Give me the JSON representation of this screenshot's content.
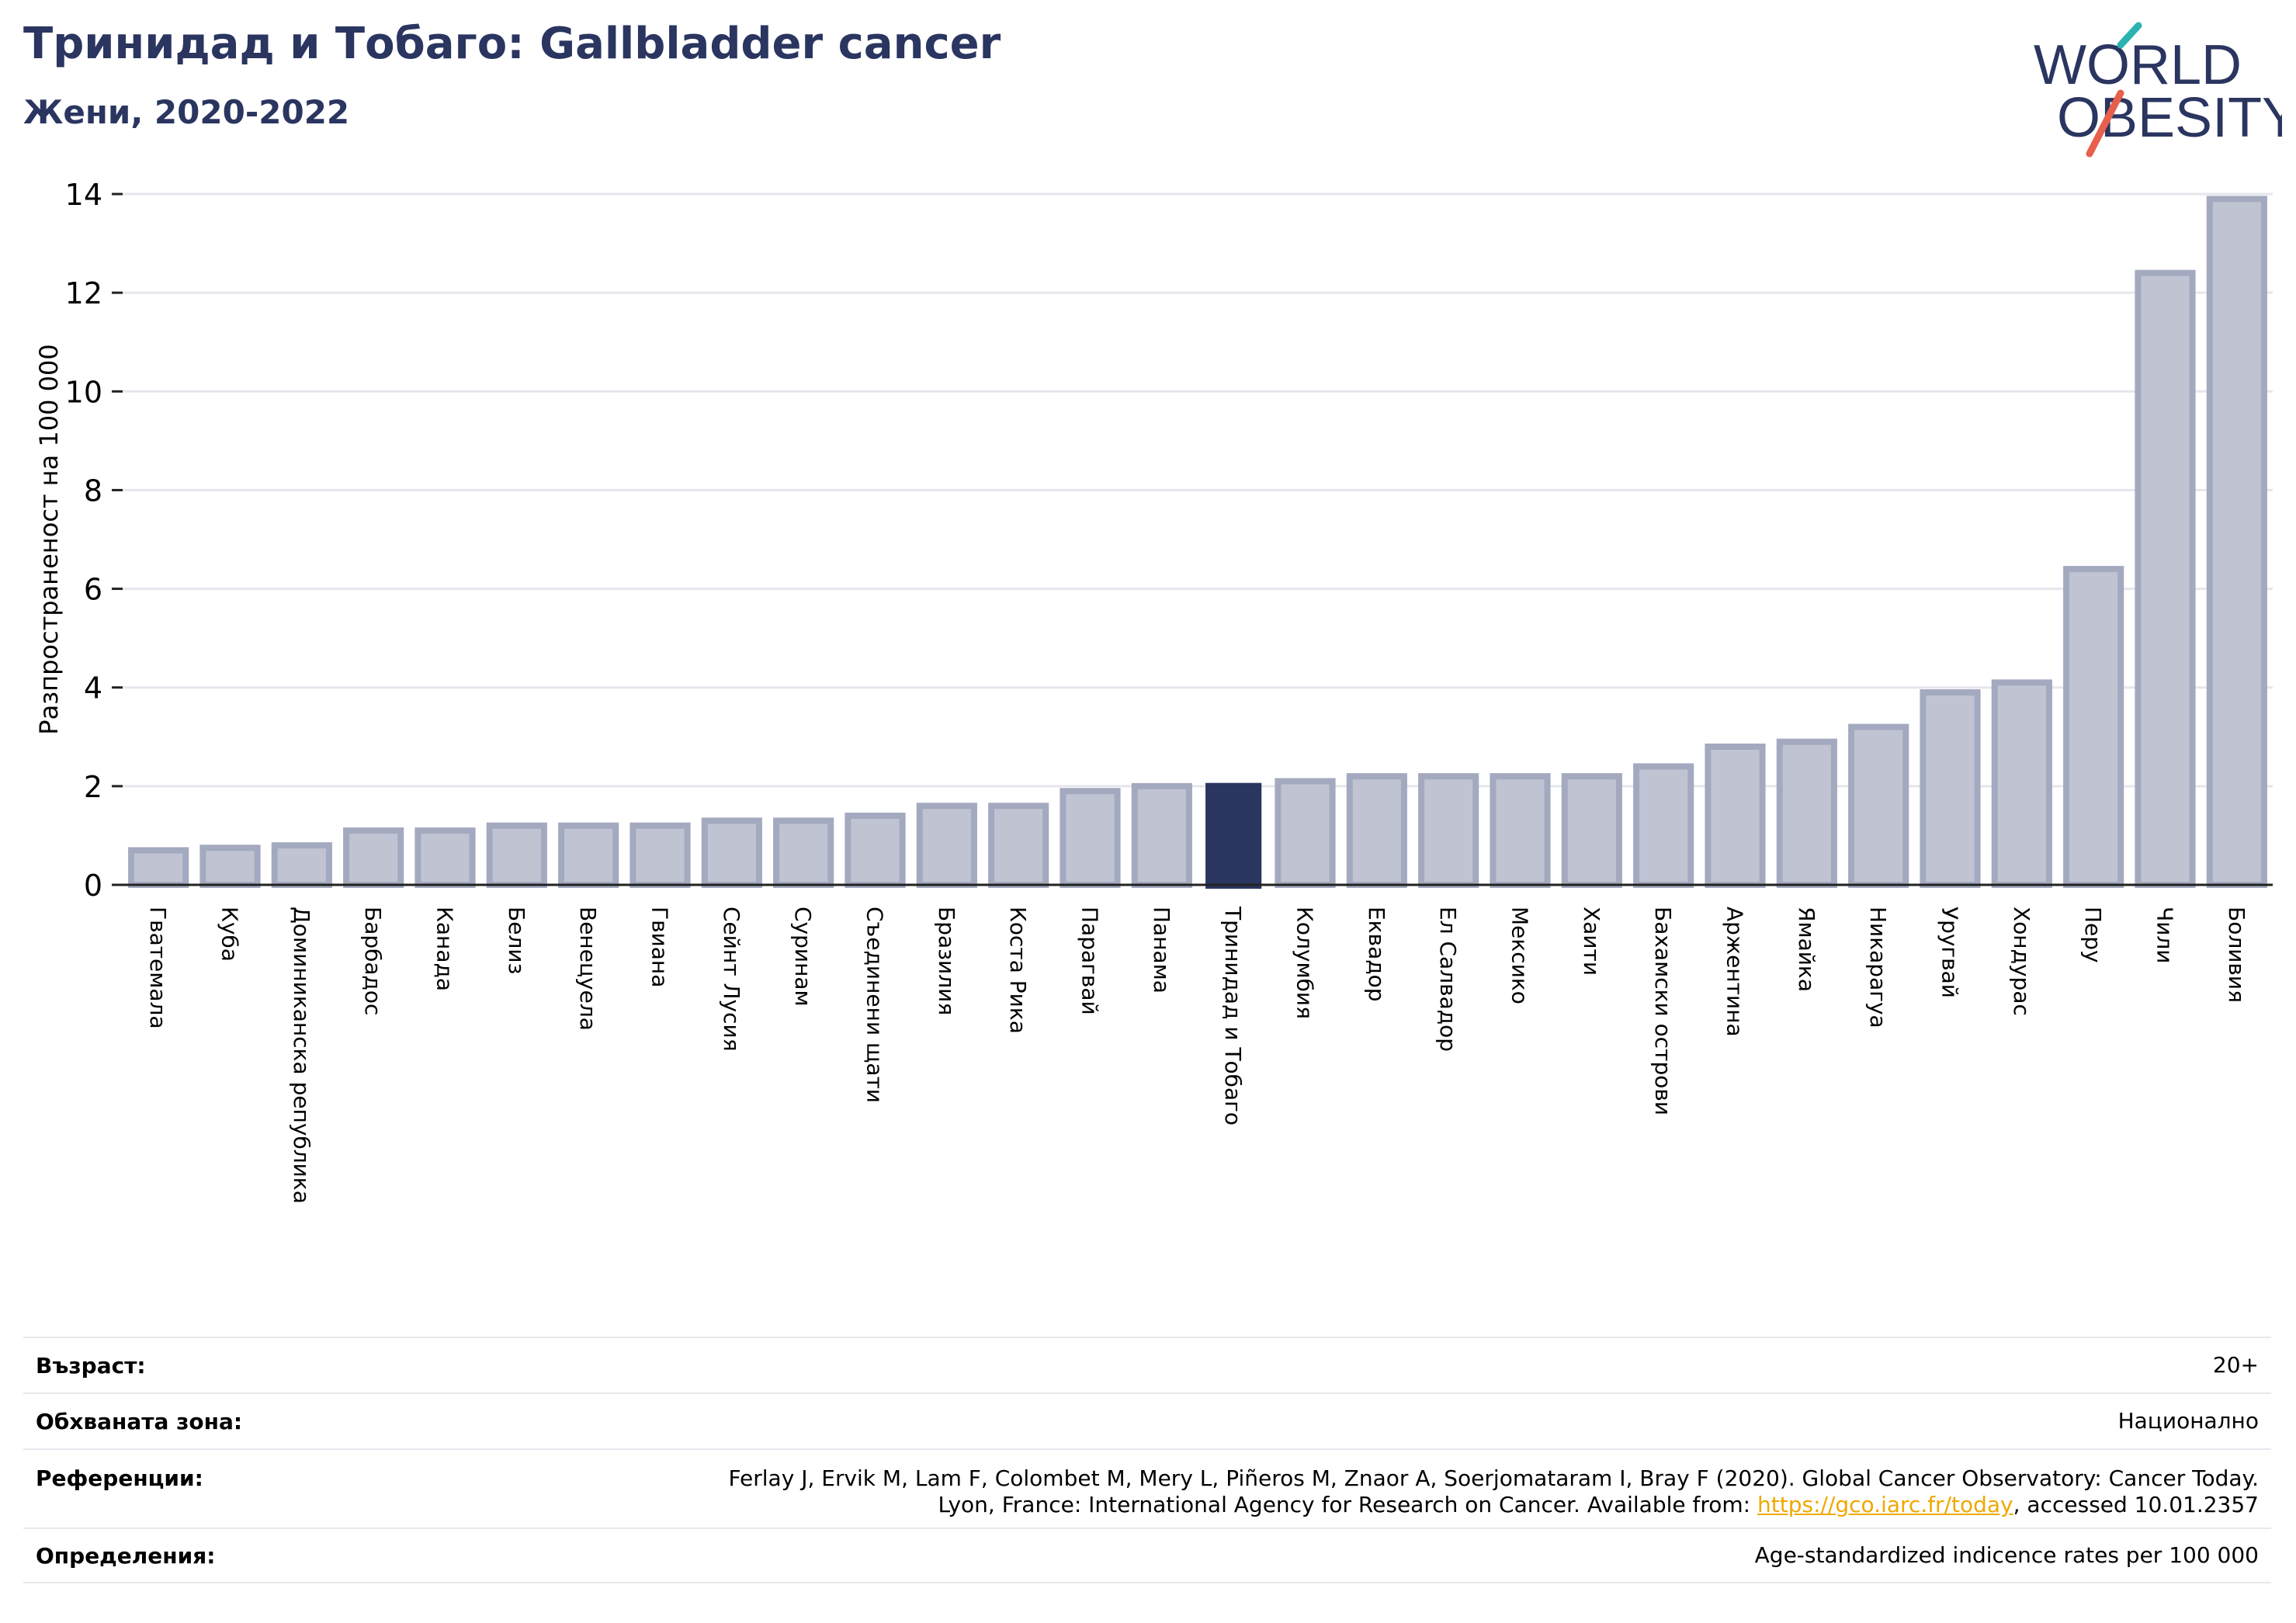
{
  "header": {
    "title": "Тринидад и Тобаго: Gallbladder cancer",
    "subtitle": "Жени, 2020-2022"
  },
  "logo": {
    "line1": "WORLD",
    "line2": "OBESITY",
    "icon": "world-obesity-logo"
  },
  "colors": {
    "bar": "#c0c4d2",
    "bar_border": "#a3a9bf",
    "highlight": "#2a3560",
    "link": "#f0a800",
    "grid": "#e6e6ee"
  },
  "chart_data": {
    "type": "bar",
    "ylabel": "Разпространеност  на 100 000",
    "ylim": [
      0,
      14
    ],
    "yticks": [
      0,
      2,
      4,
      6,
      8,
      10,
      12,
      14
    ],
    "grid": true,
    "highlight": "Тринидад и Тобаго",
    "categories": [
      "Гватемала",
      "Куба",
      "Доминиканска република",
      "Барбадос",
      "Канада",
      "Белиз",
      "Венецуела",
      "Гвиана",
      "Сейнт Лусия",
      "Суринам",
      "Съединени щати",
      "Бразилия",
      "Коста Рика",
      "Парагвай",
      "Панама",
      "Тринидад и Тобаго",
      "Колумбия",
      "Еквадор",
      "Ел Салвадор",
      "Мексико",
      "Хаити",
      "Бахамски острови",
      "Аржентина",
      "Ямайка",
      "Никарагуа",
      "Уругвай",
      "Хондурас",
      "Перу",
      "Чили",
      "Боливия"
    ],
    "values": [
      0.7,
      0.75,
      0.8,
      1.1,
      1.1,
      1.2,
      1.2,
      1.2,
      1.3,
      1.3,
      1.4,
      1.6,
      1.6,
      1.9,
      2.0,
      2.05,
      2.1,
      2.2,
      2.2,
      2.2,
      2.2,
      2.4,
      2.8,
      2.9,
      3.2,
      3.9,
      4.1,
      6.4,
      12.4,
      13.9
    ]
  },
  "info": {
    "age_label": "Възраст:",
    "age_value": "20+",
    "coverage_label": "Обхваната зона:",
    "coverage_value": "Национално",
    "references_label": "Референции:",
    "references_line1": "Ferlay J, Ervik M, Lam F, Colombet M, Mery L, Piñeros M, Znaor A, Soerjomataram I, Bray F (2020). Global Cancer Observatory: Cancer Today.",
    "references_line2_pre": "Lyon, France: International Agency for Research on Cancer. Available from: ",
    "references_link": "https://gco.iarc.fr/today",
    "references_line2_post": ", accessed 10.01.2357",
    "definitions_label": "Определения:",
    "definitions_value": "Age-standardized indicence rates per 100 000"
  }
}
